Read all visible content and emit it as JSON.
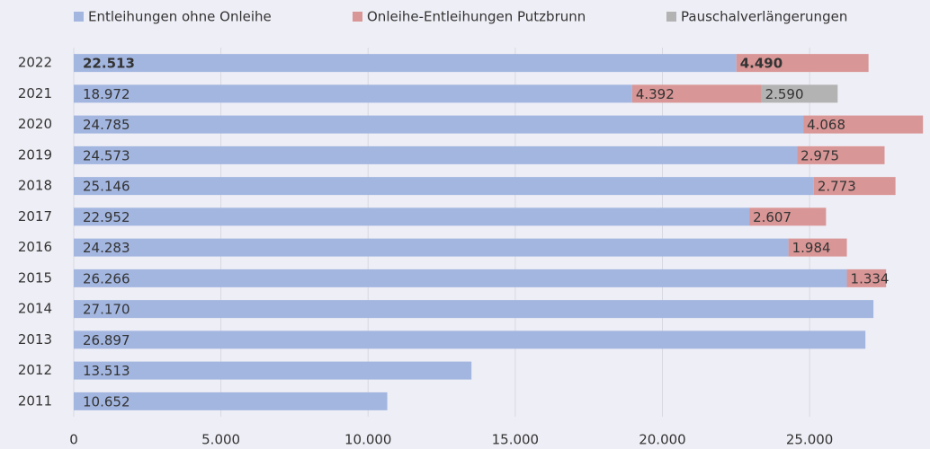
{
  "chart_data": {
    "type": "stacked-barh",
    "categories": [
      "2022",
      "2021",
      "2020",
      "2019",
      "2018",
      "2017",
      "2016",
      "2015",
      "2014",
      "2013",
      "2012",
      "2011"
    ],
    "series": [
      {
        "name": "Entleihungen ohne Onleihe",
        "color": "#a3b6e0",
        "values": [
          22513,
          18972,
          24785,
          24573,
          25146,
          22952,
          24283,
          26266,
          27170,
          26897,
          13513,
          10652
        ],
        "value_labels": [
          "22.513",
          "18.972",
          "24.785",
          "24.573",
          "25.146",
          "22.952",
          "24.283",
          "26.266",
          "27.170",
          "26.897",
          "13.513",
          "10.652"
        ]
      },
      {
        "name": "Onleihe-Entleihungen Putzbrunn",
        "color": "#d99696",
        "values": [
          4490,
          4392,
          4068,
          2975,
          2773,
          2607,
          1984,
          1334,
          null,
          null,
          null,
          null
        ],
        "value_labels": [
          "4.490",
          "4.392",
          "4.068",
          "2.975",
          "2.773",
          "2.607",
          "1.984",
          "1.334",
          null,
          null,
          null,
          null
        ]
      },
      {
        "name": "Pauschalverlängerungen",
        "color": "#b3b3b3",
        "values": [
          null,
          2590,
          null,
          null,
          null,
          null,
          null,
          null,
          null,
          null,
          null,
          null
        ],
        "value_labels": [
          null,
          "2.590",
          null,
          null,
          null,
          null,
          null,
          null,
          null,
          null,
          null,
          null
        ]
      }
    ],
    "xlim": [
      0,
      29000
    ],
    "xticks": [
      0,
      {
        "value": 5000,
        "label": "5.000"
      },
      {
        "value": 10000,
        "label": "10.000"
      },
      {
        "value": 15000,
        "label": "15.000"
      },
      {
        "value": 20000,
        "label": "20.000"
      },
      {
        "value": 25000,
        "label": "25.000"
      }
    ],
    "grid": true,
    "legend": "top"
  }
}
